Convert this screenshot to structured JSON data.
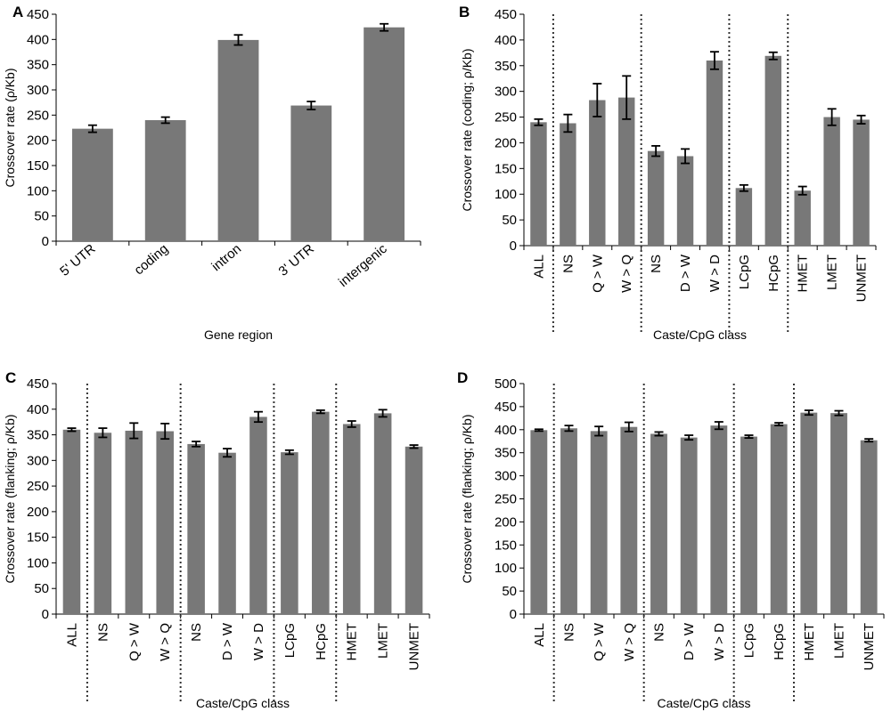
{
  "chart_data": [
    {
      "panel_label": "A",
      "type": "bar",
      "xlabel": "Gene region",
      "ylabel": "Crossover rate (ρ/Kb)",
      "ylim": [
        0,
        450
      ],
      "ytick_step": 50,
      "categories": [
        "5' UTR",
        "coding",
        "intron",
        "3' UTR",
        "intergenic"
      ],
      "values": [
        223,
        240,
        399,
        269,
        424
      ],
      "errors": [
        7,
        6,
        10,
        8,
        7
      ],
      "group_separators_after": []
    },
    {
      "panel_label": "B",
      "type": "bar",
      "xlabel": "Caste/CpG class",
      "ylabel": "Crossover rate (coding; ρ/Kb)",
      "ylim": [
        0,
        450
      ],
      "ytick_step": 50,
      "categories": [
        "ALL",
        "NS",
        "Q > W",
        "W > Q",
        "NS",
        "D > W",
        "W > D",
        "LCpG",
        "HCpG",
        "HMET",
        "LMET",
        "UNMET"
      ],
      "values": [
        240,
        238,
        283,
        288,
        184,
        174,
        360,
        112,
        369,
        107,
        250,
        245
      ],
      "errors": [
        6,
        17,
        32,
        42,
        10,
        14,
        17,
        6,
        7,
        8,
        16,
        8
      ],
      "group_separators_after": [
        0,
        3,
        6,
        8
      ]
    },
    {
      "panel_label": "C",
      "type": "bar",
      "xlabel": "Caste/CpG class",
      "ylabel": "Crossover rate (flanking; ρ/Kb)",
      "ylim": [
        0,
        450
      ],
      "ytick_step": 50,
      "categories": [
        "ALL",
        "NS",
        "Q > W",
        "W > Q",
        "NS",
        "D > W",
        "W > D",
        "LCpG",
        "HCpG",
        "HMET",
        "LMET",
        "UNMET"
      ],
      "values": [
        360,
        354,
        358,
        357,
        332,
        315,
        385,
        316,
        395,
        371,
        392,
        327
      ],
      "errors": [
        3,
        9,
        15,
        15,
        5,
        8,
        10,
        4,
        3,
        6,
        7,
        3
      ],
      "group_separators_after": [
        0,
        3,
        6,
        8
      ]
    },
    {
      "panel_label": "D",
      "type": "bar",
      "xlabel": "Caste/CpG class",
      "ylabel": "Crossover rate (flanking; ρ/Kb)",
      "ylim": [
        0,
        500
      ],
      "ytick_step": 50,
      "categories": [
        "ALL",
        "NS",
        "Q > W",
        "W > Q",
        "NS",
        "D > W",
        "W > D",
        "LCpG",
        "HCpG",
        "HMET",
        "LMET",
        "UNMET"
      ],
      "values": [
        399,
        403,
        397,
        406,
        391,
        383,
        409,
        385,
        412,
        437,
        436,
        377
      ],
      "errors": [
        2,
        6,
        10,
        10,
        4,
        5,
        8,
        3,
        3,
        5,
        5,
        3
      ],
      "group_separators_after": [
        0,
        3,
        6,
        8
      ]
    }
  ],
  "colors": {
    "bar": "#787878",
    "axis": "#000000",
    "error_bar": "#000000",
    "separator": "#333333"
  }
}
